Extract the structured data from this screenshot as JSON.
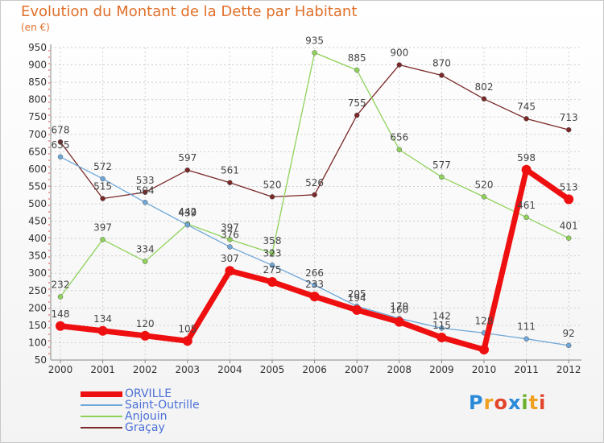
{
  "title": "Evolution du Montant de la Dette par Habitant",
  "subtitle": "(en €)",
  "logo": {
    "letters": [
      "P",
      "r",
      "o",
      "x",
      "i",
      "t",
      "i"
    ],
    "colors": [
      "#2a8ad8",
      "#f0a020",
      "#e2452b",
      "#2a8ad8",
      "#6ab02a",
      "#f0a020",
      "#e2452b"
    ]
  },
  "chart_data": {
    "type": "line",
    "x": [
      "2000",
      "2001",
      "2002",
      "2003",
      "2004",
      "2005",
      "2006",
      "2007",
      "2008",
      "2009",
      "2010",
      "2011",
      "2012"
    ],
    "ylim": [
      50,
      950
    ],
    "yticks": [
      50,
      100,
      150,
      200,
      250,
      300,
      350,
      400,
      450,
      500,
      550,
      600,
      650,
      700,
      750,
      800,
      850,
      900,
      950
    ],
    "grid": true,
    "legend_position": "bottom-left",
    "series": [
      {
        "name": "Graçay",
        "color": "#7a2828",
        "values": [
          678,
          515,
          533,
          597,
          561,
          520,
          526,
          755,
          900,
          870,
          802,
          745,
          713
        ],
        "labels": [
          "678",
          "515",
          "533",
          "597",
          "561",
          "520",
          "526",
          "755",
          "900",
          "870",
          "802",
          "745",
          "713"
        ]
      },
      {
        "name": "Anjouin",
        "color": "#8fd25a",
        "values": [
          232,
          397,
          334,
          442,
          397,
          358,
          935,
          885,
          656,
          577,
          520,
          461,
          401
        ],
        "labels": [
          "232",
          "397",
          "334",
          "442",
          "397",
          "358",
          "935",
          "885",
          "656",
          "577",
          "520",
          "461",
          "401"
        ]
      },
      {
        "name": "Saint-Outrille",
        "color": "#6ea7d8",
        "values": [
          635,
          572,
          504,
          439,
          376,
          323,
          266,
          205,
          170,
          142,
          128,
          111,
          92
        ],
        "labels": [
          "635",
          "572",
          "504",
          "439",
          "376",
          "323",
          "266",
          "205",
          "170",
          "142",
          "128",
          "111",
          "92"
        ]
      },
      {
        "name": "ORVILLE",
        "color": "#ee1010",
        "values": [
          148,
          134,
          120,
          105,
          307,
          275,
          233,
          194,
          160,
          115,
          80,
          598,
          513
        ],
        "labels": [
          "148",
          "134",
          "120",
          "105",
          "307",
          "275",
          "233",
          "194",
          "160",
          "115",
          "",
          "598",
          "513"
        ]
      }
    ]
  }
}
